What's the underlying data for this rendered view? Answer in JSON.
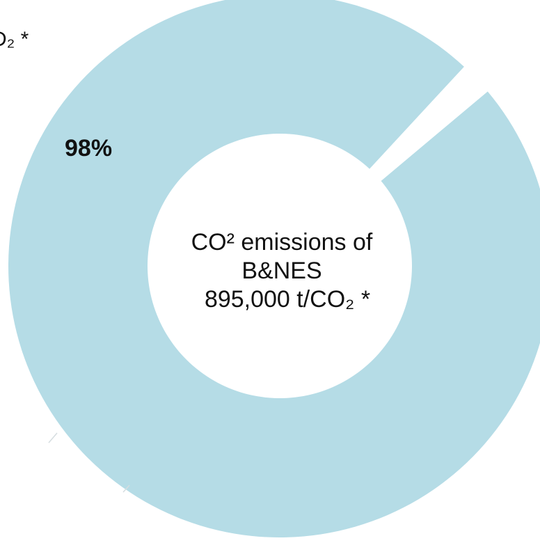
{
  "chart_data": {
    "type": "pie",
    "variant": "donut",
    "slices": [
      {
        "label": "98%",
        "value": 98,
        "color": "#b5dce6"
      },
      {
        "label": "",
        "value": 2,
        "color": "#ffffff"
      }
    ],
    "center": {
      "line1": "CO² emissions of",
      "line2": "B&NES",
      "line3": "895,000 t/CO₂ *"
    },
    "partial_label": "D₂ *"
  }
}
